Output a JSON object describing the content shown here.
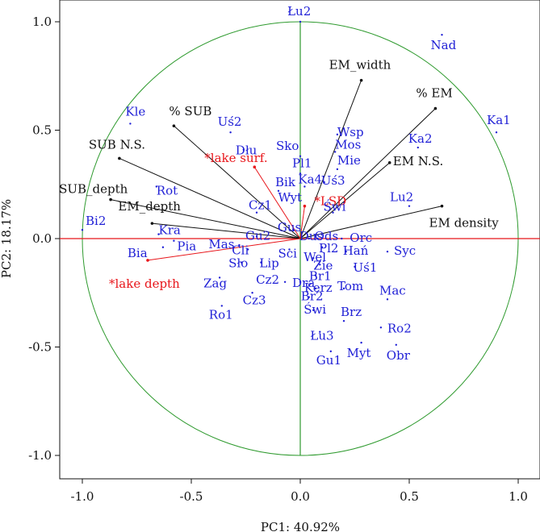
{
  "chart_data": {
    "type": "scatter",
    "subtype": "pca-biplot-correlation-circle",
    "xlabel": "PC1: 40.92%",
    "ylabel": "PC2: 18.17%",
    "xlim": [
      -1.1,
      1.1
    ],
    "ylim": [
      -1.1,
      1.1
    ],
    "xticks": [
      "-1.0",
      "-0.5",
      "0.0",
      "0.5",
      "1.0"
    ],
    "yticks": [
      "-1.0",
      "-0.5",
      "0.0",
      "0.5",
      "1.0"
    ],
    "xtick_values": [
      -1.0,
      -0.5,
      0.0,
      0.5,
      1.0
    ],
    "ytick_values": [
      -1.0,
      -0.5,
      0.0,
      0.5,
      1.0
    ],
    "colors": {
      "circle": "#2e9a2e",
      "zero_v": "#2e9a2e",
      "zero_h": "#e8161b",
      "active": "#111111",
      "supplementary": "#e8161b",
      "sites": "#1f1fd6"
    },
    "active_variables": [
      {
        "name": "EM_width",
        "x": 0.28,
        "y": 0.73
      },
      {
        "name": "% EM",
        "x": 0.62,
        "y": 0.6
      },
      {
        "name": "EM N.S.",
        "x": 0.41,
        "y": 0.35
      },
      {
        "name": "EM density",
        "x": 0.65,
        "y": 0.15
      },
      {
        "name": "% SUB",
        "x": -0.58,
        "y": 0.52
      },
      {
        "name": "SUB N.S.",
        "x": -0.83,
        "y": 0.37
      },
      {
        "name": "SUB_depth",
        "x": -0.87,
        "y": 0.18
      },
      {
        "name": "EM_depth",
        "x": -0.68,
        "y": 0.07
      }
    ],
    "supplementary_variables": [
      {
        "name": "*lake surf.",
        "x": -0.21,
        "y": 0.33
      },
      {
        "name": "*LSD",
        "x": 0.02,
        "y": 0.15
      },
      {
        "name": "*lake depth",
        "x": -0.7,
        "y": -0.1
      }
    ],
    "sites": [
      {
        "name": "Łu2",
        "x": 0.0,
        "y": 1.0,
        "label": "Łu2"
      },
      {
        "name": "Nad",
        "x": 0.65,
        "y": 0.94,
        "label": "Nad"
      },
      {
        "name": "Ka1",
        "x": 0.9,
        "y": 0.49,
        "label": "Ka1"
      },
      {
        "name": "Ka2",
        "x": 0.54,
        "y": 0.42,
        "label": "Ka2"
      },
      {
        "name": "Lu2",
        "x": 0.5,
        "y": 0.15,
        "label": "Lu2"
      },
      {
        "name": "Kle",
        "x": -0.78,
        "y": 0.53,
        "label": "Kle"
      },
      {
        "name": "Uś2",
        "x": -0.32,
        "y": 0.49,
        "label": "Uś2"
      },
      {
        "name": "Dłu",
        "x": -0.26,
        "y": 0.41,
        "label": "Dłu"
      },
      {
        "name": "Rot",
        "x": -0.66,
        "y": 0.24,
        "label": "Rot"
      },
      {
        "name": "Bi2",
        "x": -1.0,
        "y": 0.04,
        "label": "Bi2"
      },
      {
        "name": "Kra",
        "x": -0.65,
        "y": 0.02,
        "label": "Kra"
      },
      {
        "name": "Bia",
        "x": -0.63,
        "y": -0.04,
        "label": "Bia"
      },
      {
        "name": "Pia",
        "x": -0.58,
        "y": -0.01,
        "label": "Pia"
      },
      {
        "name": "Wsp",
        "x": 0.17,
        "y": 0.48,
        "label": "Wsp"
      },
      {
        "name": "Mos",
        "x": 0.16,
        "y": 0.4,
        "label": "Mos"
      },
      {
        "name": "Mie",
        "x": 0.17,
        "y": 0.32,
        "label": "Mie"
      },
      {
        "name": "Sko",
        "x": 0.0,
        "y": 0.38,
        "label": "Sko"
      },
      {
        "name": "Uś3",
        "x": 0.11,
        "y": 0.26,
        "label": "Uś3"
      },
      {
        "name": "Pl1",
        "x": 0.0,
        "y": 0.3,
        "label": "Pl1"
      },
      {
        "name": "Ka4",
        "x": 0.02,
        "y": 0.24,
        "label": "Ka4"
      },
      {
        "name": "Bik",
        "x": -0.1,
        "y": 0.22,
        "label": "Bik"
      },
      {
        "name": "Wyt",
        "x": -0.05,
        "y": 0.2,
        "label": "Wyt"
      },
      {
        "name": "Świ",
        "x": 0.15,
        "y": 0.12,
        "label": "Świ"
      },
      {
        "name": "Orc",
        "x": 0.19,
        "y": 0.0,
        "label": "Orc"
      },
      {
        "name": "Hań",
        "x": 0.21,
        "y": -0.06,
        "label": "Hań"
      },
      {
        "name": "Syc",
        "x": 0.4,
        "y": -0.06,
        "label": "Syc"
      },
      {
        "name": "Uś1",
        "x": 0.25,
        "y": -0.13,
        "label": "Uś1"
      },
      {
        "name": "Mac",
        "x": 0.4,
        "y": -0.28,
        "label": "Mac"
      },
      {
        "name": "Tom",
        "x": 0.2,
        "y": -0.23,
        "label": "Tom"
      },
      {
        "name": "Brz",
        "x": 0.2,
        "y": -0.38,
        "label": "Brz"
      },
      {
        "name": "Ro2",
        "x": 0.37,
        "y": -0.41,
        "label": "Ro2"
      },
      {
        "name": "Łu3",
        "x": 0.09,
        "y": -0.43,
        "label": "Łu3"
      },
      {
        "name": "Myt",
        "x": 0.28,
        "y": -0.48,
        "label": "Myt"
      },
      {
        "name": "Obr",
        "x": 0.44,
        "y": -0.49,
        "label": "Obr"
      },
      {
        "name": "Gu1",
        "x": 0.14,
        "y": -0.52,
        "label": "Gu1"
      },
      {
        "name": "Cz1",
        "x": -0.2,
        "y": 0.12,
        "label": "Cz1"
      },
      {
        "name": "Gu2",
        "x": -0.2,
        "y": 0.01,
        "label": "Gu2"
      },
      {
        "name": "Mas",
        "x": -0.28,
        "y": -0.03,
        "label": "Mas"
      },
      {
        "name": "Cli",
        "x": -0.24,
        "y": -0.05,
        "label": "Cli"
      },
      {
        "name": "Sło",
        "x": -0.27,
        "y": -0.11,
        "label": "Sło"
      },
      {
        "name": "Lip",
        "x": -0.18,
        "y": -0.11,
        "label": "Lip"
      },
      {
        "name": "Zag",
        "x": -0.37,
        "y": -0.18,
        "label": "Zag"
      },
      {
        "name": "Cz2",
        "x": -0.07,
        "y": -0.2,
        "label": "Cz2"
      },
      {
        "name": "Cz3",
        "x": -0.22,
        "y": -0.25,
        "label": "Cz3"
      },
      {
        "name": "Ro1",
        "x": -0.36,
        "y": -0.31,
        "label": "Ro1"
      },
      {
        "name": "Sci",
        "x": -0.05,
        "y": -0.05,
        "label": "Sci"
      },
      {
        "name": "Pl2",
        "x": 0.1,
        "y": -0.04,
        "label": "Pl2"
      },
      {
        "name": "Wel",
        "x": 0.06,
        "y": -0.09,
        "label": "Wel"
      },
      {
        "name": "Zie",
        "x": 0.09,
        "y": -0.12,
        "label": "Zie"
      },
      {
        "name": "Br1",
        "x": 0.07,
        "y": -0.17,
        "label": "Br1"
      },
      {
        "name": "Dra",
        "x": 0.0,
        "y": -0.2,
        "label": "Dra"
      },
      {
        "name": "Kerz",
        "x": 0.07,
        "y": -0.23,
        "label": "Kerz"
      },
      {
        "name": "Br2",
        "x": 0.04,
        "y": -0.27,
        "label": "Br2"
      },
      {
        "name": "Świ2",
        "x": 0.06,
        "y": -0.33,
        "label": "Świ"
      },
      {
        "name": "Gus",
        "x": -0.03,
        "y": 0.04,
        "label": "Gus"
      },
      {
        "name": "Dus",
        "x": 0.04,
        "y": 0.0,
        "label": "Dus"
      },
      {
        "name": "Ods",
        "x": 0.08,
        "y": 0.0,
        "label": "Ods"
      }
    ]
  }
}
